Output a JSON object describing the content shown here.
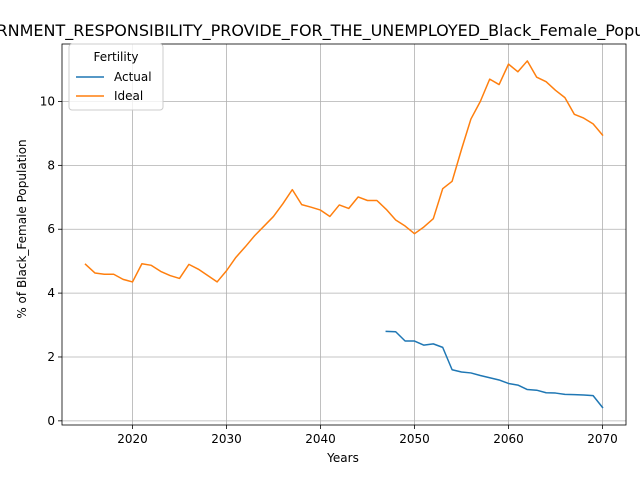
{
  "chart_data": {
    "type": "line",
    "title": "GOVERNMENT_RESPONSIBILITY_PROVIDE_FOR_THE_UNEMPLOYED_Black_Female_Population",
    "xlabel": "Years",
    "ylabel": "% of Black_Female Population",
    "xlim": [
      2012.5,
      2072.5
    ],
    "ylim": [
      -0.13,
      11.8
    ],
    "xticks": [
      2020,
      2030,
      2040,
      2050,
      2060,
      2070
    ],
    "yticks": [
      0,
      2,
      4,
      6,
      8,
      10
    ],
    "grid": true,
    "legend": {
      "title": "Fertility",
      "placement": "upper-left"
    },
    "series": [
      {
        "name": "Actual",
        "color": "#1f77b4",
        "x": [
          2047,
          2048,
          2049,
          2050,
          2051,
          2052,
          2053,
          2054,
          2055,
          2056,
          2057,
          2058,
          2059,
          2060,
          2061,
          2062,
          2063,
          2064,
          2065,
          2066,
          2067,
          2068,
          2069,
          2070
        ],
        "y": [
          2.8,
          2.79,
          2.5,
          2.5,
          2.37,
          2.41,
          2.3,
          1.6,
          1.53,
          1.5,
          1.42,
          1.35,
          1.28,
          1.17,
          1.12,
          0.98,
          0.96,
          0.88,
          0.87,
          0.83,
          0.82,
          0.81,
          0.79,
          0.42
        ]
      },
      {
        "name": "Ideal",
        "color": "#ff7f0e",
        "x": [
          2015,
          2016,
          2017,
          2018,
          2019,
          2020,
          2021,
          2022,
          2023,
          2024,
          2025,
          2026,
          2027,
          2028,
          2029,
          2030,
          2031,
          2032,
          2033,
          2034,
          2035,
          2036,
          2037,
          2038,
          2039,
          2040,
          2041,
          2042,
          2043,
          2044,
          2045,
          2046,
          2047,
          2048,
          2049,
          2050,
          2051,
          2052,
          2053,
          2054,
          2055,
          2056,
          2057,
          2058,
          2059,
          2060,
          2061,
          2062,
          2063,
          2064,
          2065,
          2066,
          2067,
          2068,
          2069,
          2070
        ],
        "y": [
          4.9,
          4.63,
          4.59,
          4.59,
          4.43,
          4.35,
          4.92,
          4.87,
          4.68,
          4.55,
          4.46,
          4.9,
          4.75,
          4.55,
          4.35,
          4.7,
          5.12,
          5.45,
          5.8,
          6.1,
          6.4,
          6.8,
          7.24,
          6.77,
          6.69,
          6.6,
          6.4,
          6.76,
          6.65,
          7.01,
          6.9,
          6.9,
          6.62,
          6.29,
          6.1,
          5.86,
          6.07,
          6.33,
          7.27,
          7.5,
          8.5,
          9.45,
          10.0,
          10.7,
          10.53,
          11.17,
          10.93,
          11.27,
          10.76,
          10.62,
          10.35,
          10.12,
          9.6,
          9.48,
          9.3,
          8.95
        ]
      }
    ]
  }
}
